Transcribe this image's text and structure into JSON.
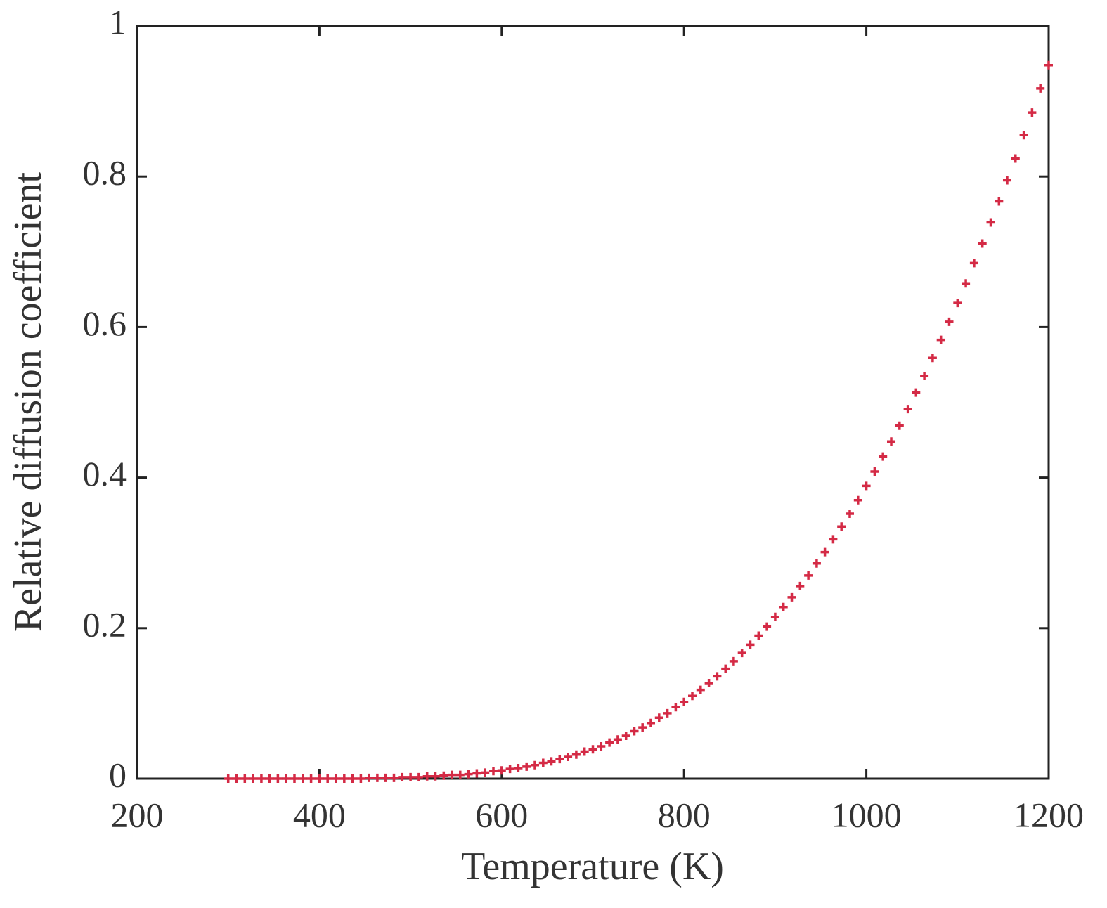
{
  "chart_data": {
    "type": "scatter",
    "x_label": "Temperature (K)",
    "y_label": "Relative diffusion coefficient",
    "xlim": [
      200,
      1200
    ],
    "xticks": [
      200,
      400,
      600,
      800,
      1000,
      1200
    ],
    "ylim": [
      0,
      1
    ],
    "yticks": [
      0,
      0.2,
      0.4,
      0.6,
      0.8,
      1
    ],
    "color": "#d42a45",
    "x": [
      300,
      309.1,
      318.2,
      327.3,
      336.4,
      345.5,
      354.5,
      363.6,
      372.7,
      381.8,
      390.9,
      400,
      409.1,
      418.2,
      427.3,
      436.4,
      445.5,
      454.5,
      463.6,
      472.7,
      481.8,
      490.9,
      500,
      509.1,
      518.2,
      527.3,
      536.4,
      545.5,
      554.5,
      563.6,
      572.7,
      581.8,
      590.9,
      600,
      609.1,
      618.2,
      627.3,
      636.4,
      645.5,
      654.5,
      663.6,
      672.7,
      681.8,
      690.9,
      700,
      709.1,
      718.2,
      727.3,
      736.4,
      745.5,
      754.5,
      763.6,
      772.7,
      781.8,
      790.9,
      800,
      809.1,
      818.2,
      827.3,
      836.4,
      845.5,
      854.5,
      863.6,
      872.7,
      881.8,
      890.9,
      900,
      909.1,
      918.2,
      927.3,
      936.4,
      945.5,
      954.5,
      963.6,
      972.7,
      981.8,
      990.9,
      1000,
      1009.1,
      1018.2,
      1027.3,
      1036.4,
      1045.5,
      1054.5,
      1063.6,
      1072.7,
      1081.8,
      1090.9,
      1100,
      1109.1,
      1118.2,
      1127.3,
      1136.4,
      1145.5,
      1154.5,
      1163.6,
      1172.7,
      1181.8,
      1190.9,
      1200
    ],
    "values": [
      0,
      0,
      0,
      0,
      0,
      0,
      0,
      0,
      0,
      0,
      0,
      0,
      0,
      0,
      0,
      0,
      0,
      0.001,
      0.001,
      0.001,
      0.001,
      0.002,
      0.002,
      0.002,
      0.003,
      0.003,
      0.004,
      0.005,
      0.005,
      0.006,
      0.007,
      0.008,
      0.01,
      0.011,
      0.013,
      0.014,
      0.016,
      0.018,
      0.021,
      0.023,
      0.026,
      0.029,
      0.032,
      0.036,
      0.039,
      0.043,
      0.048,
      0.052,
      0.057,
      0.063,
      0.068,
      0.074,
      0.081,
      0.087,
      0.095,
      0.102,
      0.11,
      0.118,
      0.127,
      0.136,
      0.146,
      0.156,
      0.167,
      0.178,
      0.19,
      0.202,
      0.215,
      0.228,
      0.241,
      0.256,
      0.27,
      0.286,
      0.301,
      0.318,
      0.335,
      0.352,
      0.37,
      0.389,
      0.408,
      0.428,
      0.448,
      0.469,
      0.491,
      0.513,
      0.535,
      0.559,
      0.583,
      0.607,
      0.632,
      0.658,
      0.685,
      0.711,
      0.739,
      0.767,
      0.795,
      0.824,
      0.855,
      0.885,
      0.917,
      0.948
    ]
  }
}
